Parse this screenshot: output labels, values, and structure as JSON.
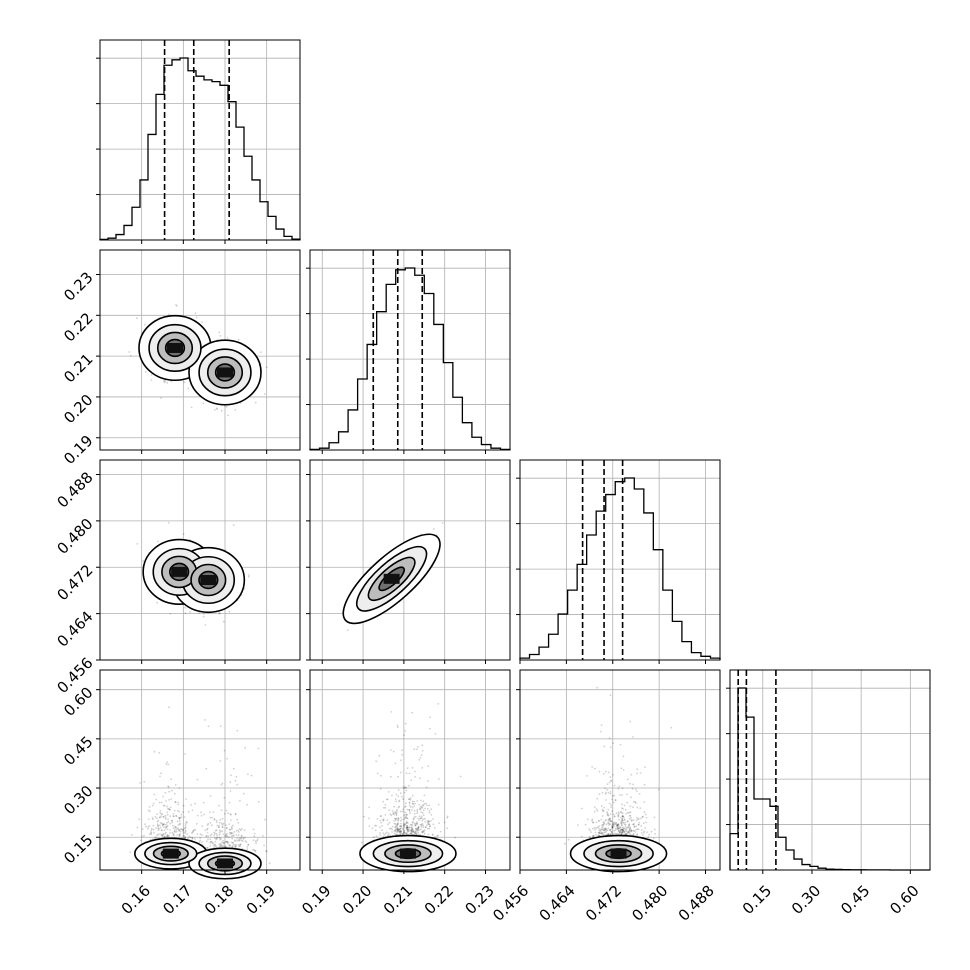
{
  "chart_data": {
    "type": "corner",
    "parameters": [
      {
        "range": [
          0.15,
          0.198
        ],
        "ticks": [
          0.16,
          0.17,
          0.18,
          0.19
        ],
        "tick_labels": [
          "0.16",
          "0.17",
          "0.18",
          "0.19"
        ]
      },
      {
        "range": [
          0.187,
          0.236
        ],
        "ticks": [
          0.19,
          0.2,
          0.21,
          0.22,
          0.23
        ],
        "tick_labels": [
          "0.19",
          "0.20",
          "0.21",
          "0.22",
          "0.23"
        ]
      },
      {
        "range": [
          0.456,
          0.4905
        ],
        "ticks": [
          0.456,
          0.464,
          0.472,
          0.48,
          0.488
        ],
        "tick_labels": [
          "0.456",
          "0.464",
          "0.472",
          "0.480",
          "0.488"
        ]
      },
      {
        "range": [
          0.05,
          0.66
        ],
        "ticks": [
          0.15,
          0.3,
          0.45,
          0.6
        ],
        "tick_labels": [
          "0.15",
          "0.30",
          "0.45",
          "0.60"
        ]
      }
    ],
    "histograms": [
      {
        "param": 0,
        "edges_range": [
          0.15,
          0.198
        ],
        "counts": [
          0.3,
          1,
          3,
          8,
          18,
          33,
          58,
          80,
          96,
          99,
          100,
          93,
          90,
          88,
          87,
          85,
          76,
          62,
          46,
          33,
          21,
          13,
          6,
          2,
          0.5
        ],
        "quantiles": [
          0.1655,
          0.1725,
          0.181
        ]
      },
      {
        "param": 1,
        "edges_range": [
          0.187,
          0.236
        ],
        "counts": [
          0.3,
          1,
          4,
          10,
          22,
          39,
          58,
          76,
          91,
          99,
          100,
          96,
          86,
          69,
          48,
          29,
          15,
          7,
          3,
          1,
          0.3
        ],
        "quantiles": [
          0.2025,
          0.2085,
          0.2145
        ]
      },
      {
        "param": 2,
        "edges_range": [
          0.456,
          0.4905
        ],
        "counts": [
          1,
          3,
          7,
          14,
          25,
          38,
          52,
          68,
          81,
          90,
          97,
          99,
          93,
          80,
          60,
          38,
          21,
          10,
          4,
          2,
          1
        ],
        "quantiles": [
          0.4668,
          0.4705,
          0.4737
        ]
      },
      {
        "param": 3,
        "edges_range": [
          0.05,
          0.66
        ],
        "counts": [
          20,
          100,
          84,
          39,
          39,
          35,
          18,
          11,
          6,
          3,
          2,
          1,
          0.5,
          0.3,
          0.2,
          0.1,
          0.1,
          0.05,
          0.05,
          0.05,
          0.02,
          0.02,
          0.02,
          0.01,
          0.01
        ],
        "quantiles": [
          0.075,
          0.1,
          0.19
        ]
      }
    ],
    "pairs": [
      {
        "x_param": 0,
        "y_param": 1,
        "description": "two peaks near (0.168, 0.212) and (0.180, 0.206)"
      },
      {
        "x_param": 0,
        "y_param": 2,
        "description": "peaks near (0.170, 0.471) and (0.175, 0.470)"
      },
      {
        "x_param": 1,
        "y_param": 2,
        "description": "strong positive correlation, peak near (0.207, 0.470)"
      },
      {
        "x_param": 0,
        "y_param": 3,
        "description": "mass concentrated at low values, peaks near (0.167, 0.10) and (0.180, 0.07)"
      },
      {
        "x_param": 1,
        "y_param": 3,
        "description": "mass concentrated at low values, peak near (0.211, 0.10)"
      },
      {
        "x_param": 2,
        "y_param": 3,
        "description": "mass concentrated at low values, peak near (0.473, 0.10)"
      }
    ],
    "grid": true,
    "colors": {
      "histogram": "#000000",
      "density": "#000000",
      "grid": "#b0b0b0"
    }
  }
}
